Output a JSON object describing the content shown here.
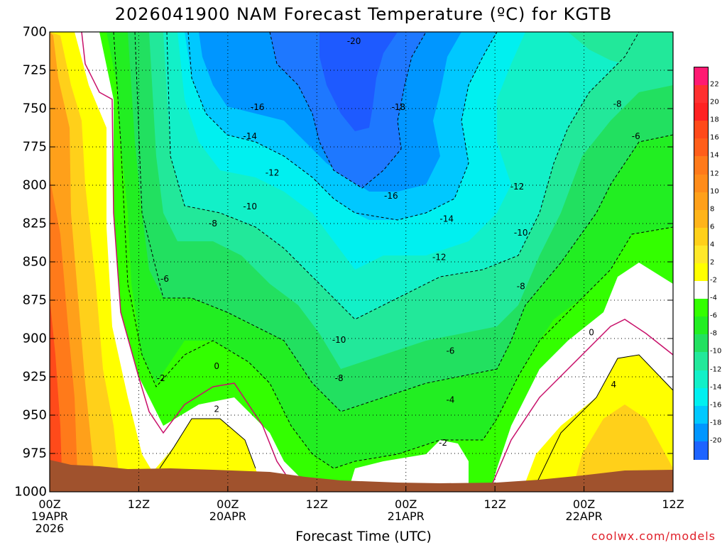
{
  "title": "2026041900 NAM Forecast Temperature (ºC) for KGTB",
  "x_axis_title": "Forecast Time (UTC)",
  "credit": "coolwx.com/models",
  "chart_data": {
    "type": "heatmap",
    "title": "2026041900 NAM Forecast Temperature (ºC) for KGTB",
    "xlabel": "Forecast Time (UTC)",
    "ylabel": "",
    "x_ticks": [
      {
        "hour": 0,
        "lines": [
          "00Z",
          "19APR",
          "2026"
        ]
      },
      {
        "hour": 12,
        "lines": [
          "12Z"
        ]
      },
      {
        "hour": 24,
        "lines": [
          "00Z",
          "20APR"
        ]
      },
      {
        "hour": 36,
        "lines": [
          "12Z"
        ]
      },
      {
        "hour": 48,
        "lines": [
          "00Z",
          "21APR"
        ]
      },
      {
        "hour": 60,
        "lines": [
          "12Z"
        ]
      },
      {
        "hour": 72,
        "lines": [
          "00Z",
          "22APR"
        ]
      },
      {
        "hour": 84,
        "lines": [
          "12Z"
        ]
      }
    ],
    "y_ticks": [
      700,
      725,
      750,
      775,
      800,
      825,
      850,
      875,
      900,
      925,
      950,
      975,
      1000
    ],
    "xlim": [
      0,
      84
    ],
    "ylim": [
      1000,
      700
    ],
    "y_inverted": true,
    "grid": true,
    "colorbar": {
      "labels": [
        22,
        20,
        18,
        16,
        14,
        12,
        10,
        8,
        6,
        4,
        2,
        -2,
        -4,
        -6,
        -8,
        -10,
        -12,
        -14,
        -16,
        -18,
        -20
      ],
      "colors": [
        "#ff1a72",
        "#ff3030",
        "#ff2222",
        "#ff4a1a",
        "#ff5e1a",
        "#ff7a1a",
        "#ff8c1a",
        "#ffa01a",
        "#ffb41a",
        "#ffd01a",
        "#ffe82a",
        "#ffff00",
        "#ffffff",
        "#33ff00",
        "#22ee22",
        "#22e060",
        "#22e89a",
        "#12f0c8",
        "#00f0f0",
        "#00c8ff",
        "#0096ff",
        "#1e64ff"
      ]
    },
    "contour_labels": [
      {
        "text": "-20",
        "hour": 41.0,
        "pressure": 706
      },
      {
        "text": "-18",
        "hour": 47.0,
        "pressure": 749
      },
      {
        "text": "-16",
        "hour": 28.0,
        "pressure": 749
      },
      {
        "text": "-16",
        "hour": 46.0,
        "pressure": 807
      },
      {
        "text": "-14",
        "hour": 27.0,
        "pressure": 768
      },
      {
        "text": "-14",
        "hour": 53.5,
        "pressure": 822
      },
      {
        "text": "-12",
        "hour": 30.0,
        "pressure": 792
      },
      {
        "text": "-12",
        "hour": 52.5,
        "pressure": 847
      },
      {
        "text": "-12",
        "hour": 63.0,
        "pressure": 801
      },
      {
        "text": "-10",
        "hour": 27.0,
        "pressure": 814
      },
      {
        "text": "-10",
        "hour": 63.5,
        "pressure": 831
      },
      {
        "text": "-10",
        "hour": 39.0,
        "pressure": 901
      },
      {
        "text": "-8",
        "hour": 22.0,
        "pressure": 825
      },
      {
        "text": "-8",
        "hour": 76.5,
        "pressure": 747
      },
      {
        "text": "-8",
        "hour": 63.5,
        "pressure": 866
      },
      {
        "text": "-8",
        "hour": 39.0,
        "pressure": 926
      },
      {
        "text": "-6",
        "hour": 15.5,
        "pressure": 861
      },
      {
        "text": "-6",
        "hour": 79.0,
        "pressure": 768
      },
      {
        "text": "-6",
        "hour": 54.0,
        "pressure": 908
      },
      {
        "text": "-4",
        "hour": 54.0,
        "pressure": 940
      },
      {
        "text": "-2",
        "hour": 15.0,
        "pressure": 926
      },
      {
        "text": "-2",
        "hour": 53.0,
        "pressure": 968
      },
      {
        "text": "0",
        "hour": 22.5,
        "pressure": 918
      },
      {
        "text": "0",
        "hour": 73.0,
        "pressure": 896
      },
      {
        "text": "2",
        "hour": 22.5,
        "pressure": 946
      },
      {
        "text": "4",
        "hour": 76.0,
        "pressure": 930
      }
    ]
  }
}
